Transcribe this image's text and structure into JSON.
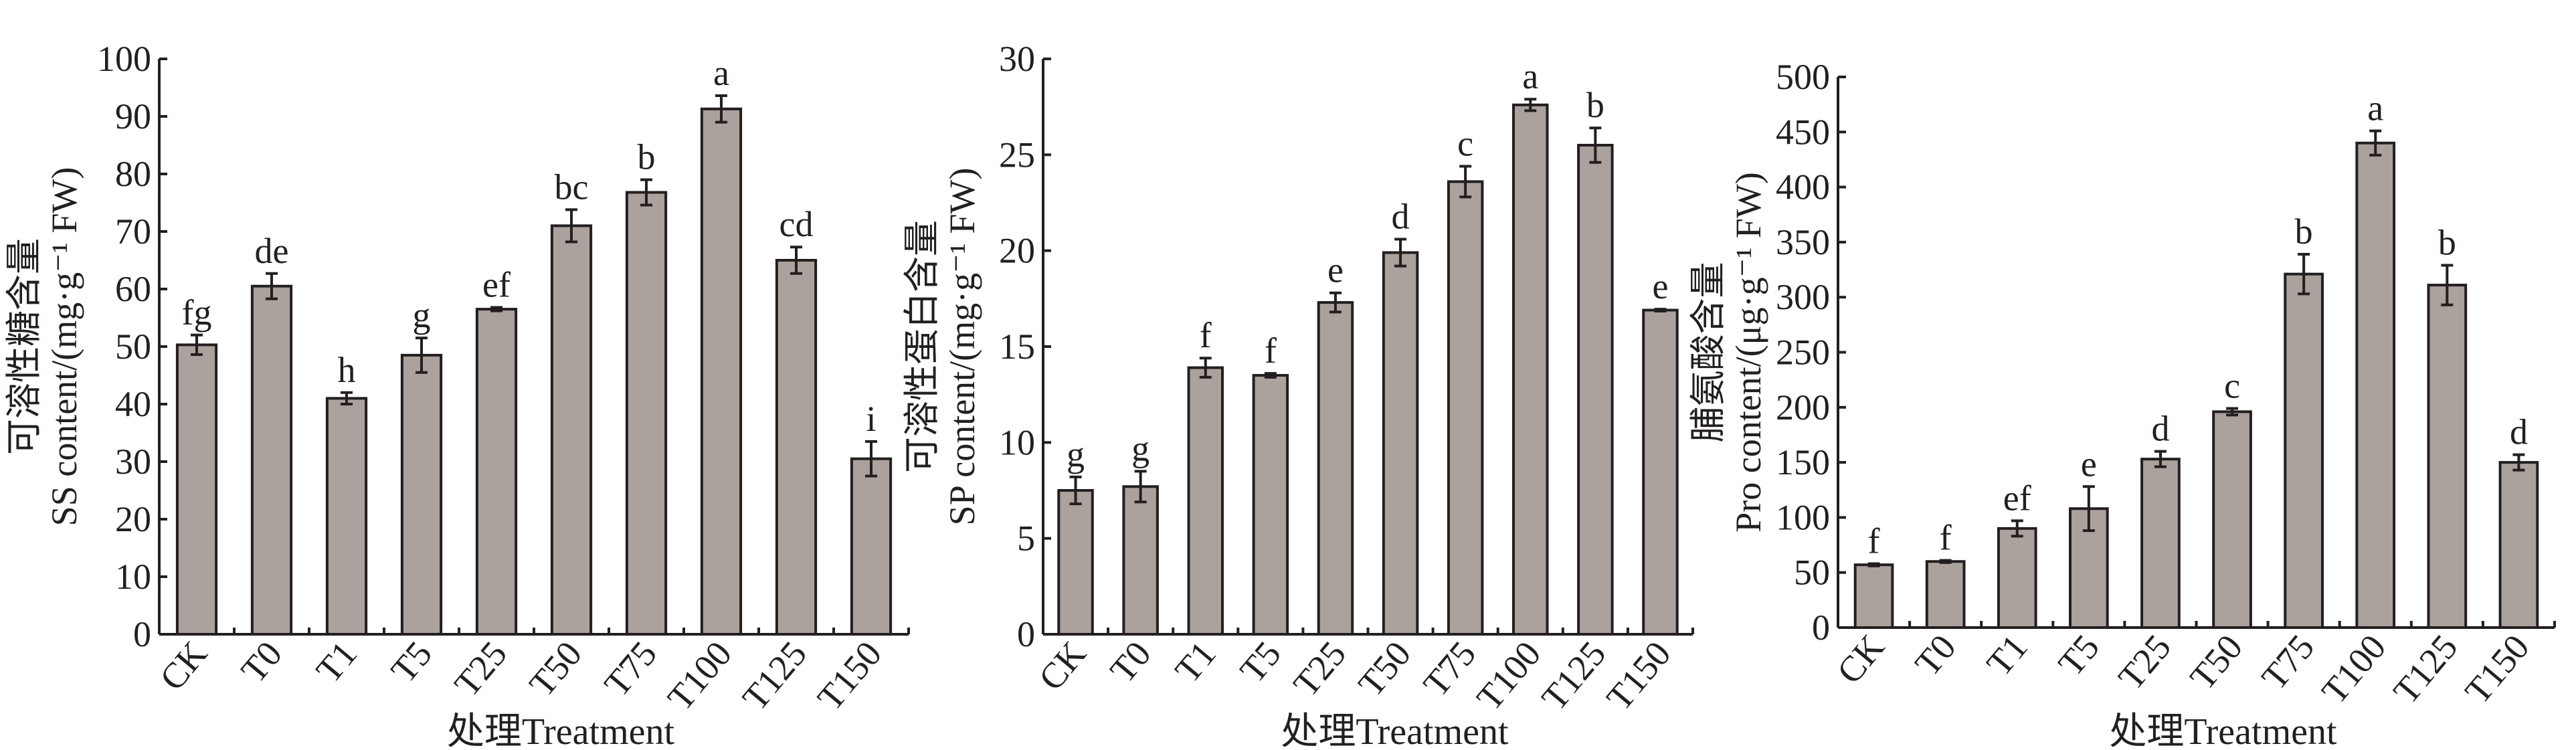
{
  "colors": {
    "bar": "#aba19d",
    "stroke": "#231f20"
  },
  "chart_data": [
    {
      "type": "bar",
      "title": "",
      "ylabel_cn": "可溶性糖含量",
      "ylabel": "SS content/(mg·g⁻¹ FW)",
      "xlabel": "处理Treatment",
      "ylim": [
        0,
        100
      ],
      "yticks": [
        0,
        10,
        20,
        30,
        40,
        50,
        60,
        70,
        80,
        90,
        100
      ],
      "categories": [
        "CK",
        "T0",
        "T1",
        "T5",
        "T25",
        "T50",
        "T75",
        "T100",
        "T125",
        "T150"
      ],
      "values": [
        50.3,
        60.5,
        41.0,
        48.5,
        56.5,
        71.0,
        76.8,
        91.3,
        65.0,
        30.5
      ],
      "errors": [
        1.7,
        2.2,
        1.0,
        3.0,
        0.3,
        2.8,
        2.2,
        2.3,
        2.3,
        3.0
      ],
      "letters": [
        "fg",
        "de",
        "h",
        "g",
        "ef",
        "bc",
        "b",
        "a",
        "cd",
        "i"
      ]
    },
    {
      "type": "bar",
      "title": "",
      "ylabel_cn": "可溶性蛋白含量",
      "ylabel": "SP content/(mg·g⁻¹ FW)",
      "xlabel": "处理Treatment",
      "ylim": [
        0,
        30
      ],
      "yticks": [
        0,
        5,
        10,
        15,
        20,
        25,
        30
      ],
      "categories": [
        "CK",
        "T0",
        "T1",
        "T5",
        "T25",
        "T50",
        "T75",
        "T100",
        "T125",
        "T150"
      ],
      "values": [
        7.5,
        7.7,
        13.9,
        13.5,
        17.3,
        19.9,
        23.6,
        27.6,
        25.5,
        16.9
      ],
      "errors": [
        0.7,
        0.8,
        0.5,
        0.1,
        0.5,
        0.7,
        0.8,
        0.3,
        0.9,
        0.05
      ],
      "letters": [
        "g",
        "g",
        "f",
        "f",
        "e",
        "d",
        "c",
        "a",
        "b",
        "e"
      ]
    },
    {
      "type": "bar",
      "title": "",
      "ylabel_cn": "脯氨酸含量",
      "ylabel": "Pro content/(μg·g⁻¹ FW)",
      "xlabel": "处理Treatment",
      "ylim": [
        0,
        500
      ],
      "yticks": [
        0,
        50,
        100,
        150,
        200,
        250,
        300,
        350,
        400,
        450,
        500
      ],
      "categories": [
        "CK",
        "T0",
        "T1",
        "T5",
        "T25",
        "T50",
        "T75",
        "T100",
        "T125",
        "T150"
      ],
      "values": [
        57,
        60,
        90,
        108,
        153,
        196,
        321,
        440,
        311,
        150
      ],
      "errors": [
        1,
        1,
        7,
        20,
        7,
        3,
        18,
        11,
        18,
        7
      ],
      "letters": [
        "f",
        "f",
        "ef",
        "e",
        "d",
        "c",
        "b",
        "a",
        "b",
        "d"
      ]
    }
  ]
}
